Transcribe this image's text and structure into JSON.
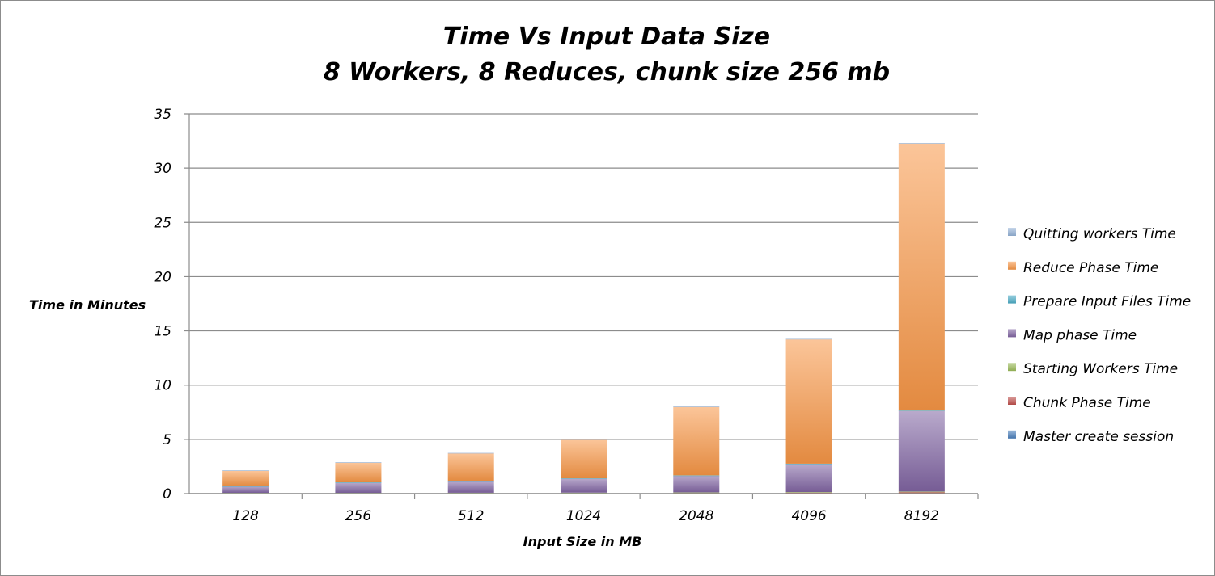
{
  "chart_data": {
    "type": "bar",
    "stacked": true,
    "title": "Time Vs Input Data Size",
    "subtitle": "8 Workers, 8 Reduces, chunk size 256 mb",
    "xlabel": "Input Size in MB",
    "ylabel": "Time in Minutes",
    "ylim": [
      0,
      35
    ],
    "yticks": [
      "0",
      "5",
      "10",
      "15",
      "20",
      "25",
      "30",
      "35"
    ],
    "grid": true,
    "legend_position": "right",
    "categories": [
      "128",
      "256",
      "512",
      "1024",
      "2048",
      "4096",
      "8192"
    ],
    "series": [
      {
        "name": "Master create session",
        "color": "#4a7ebb",
        "values": [
          0.02,
          0.02,
          0.02,
          0.02,
          0.02,
          0.02,
          0.02
        ]
      },
      {
        "name": "Chunk Phase Time",
        "color": "#c0504d",
        "values": [
          0.03,
          0.03,
          0.04,
          0.05,
          0.07,
          0.1,
          0.15
        ]
      },
      {
        "name": "Starting Workers Time",
        "color": "#9bbb59",
        "values": [
          0.02,
          0.02,
          0.02,
          0.02,
          0.02,
          0.02,
          0.02
        ]
      },
      {
        "name": "Map phase Time",
        "color": "#8064a2",
        "values": [
          0.6,
          0.95,
          1.05,
          1.3,
          1.55,
          2.6,
          7.45
        ]
      },
      {
        "name": "Prepare Input Files Time",
        "color": "#4bacc6",
        "values": [
          0.02,
          0.02,
          0.02,
          0.02,
          0.02,
          0.02,
          0.02
        ]
      },
      {
        "name": "Reduce Phase Time",
        "color": "#f79646",
        "values": [
          1.4,
          1.8,
          2.55,
          3.55,
          6.3,
          11.45,
          24.6
        ]
      },
      {
        "name": "Quitting workers Time",
        "color": "#95b3d7",
        "values": [
          0.06,
          0.06,
          0.06,
          0.06,
          0.06,
          0.06,
          0.06
        ]
      }
    ]
  }
}
